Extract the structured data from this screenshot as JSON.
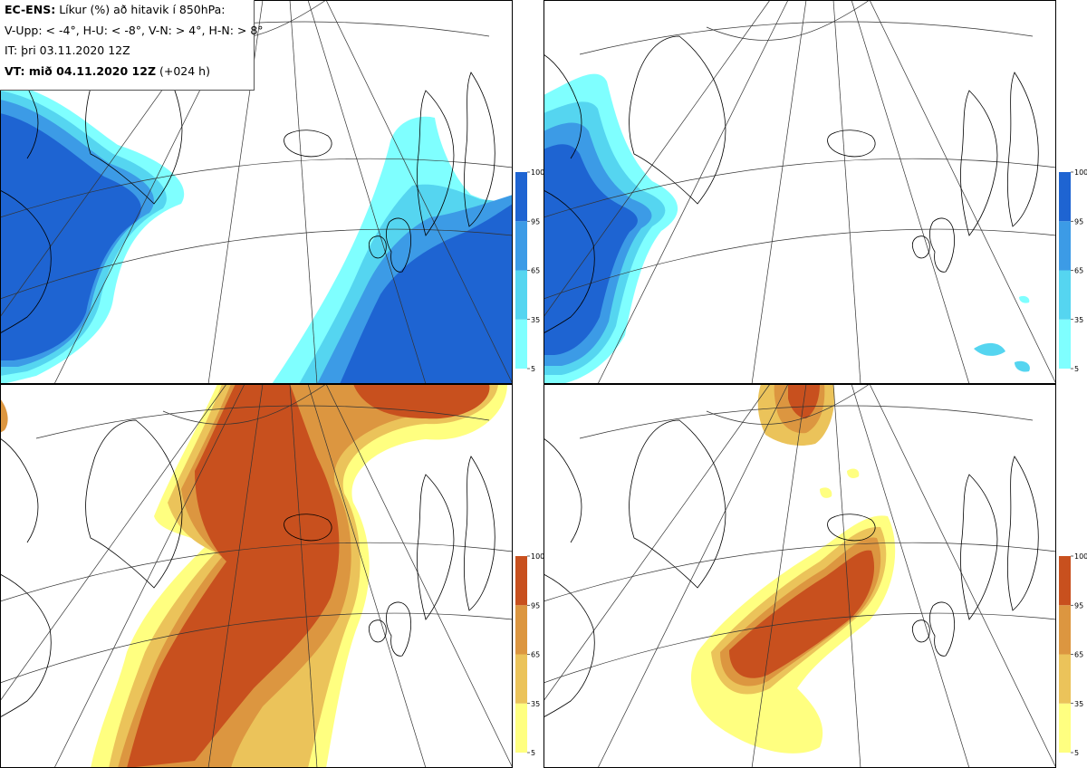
{
  "header": {
    "model": "EC-ENS:",
    "title": "Líkur (%) að hitavik í 850hPa:",
    "thresholds": "V-Upp: < -4°, H-U: < -8°, V-N: > 4°, H-N: > 8°",
    "init_time": "IT: þri 03.11.2020 12Z",
    "valid_label": "VT: mið 04.11.2020 12Z",
    "lead_time": "(+024 h)"
  },
  "colorbar_ticks": [
    "100",
    "95",
    "65",
    "35",
    "5"
  ],
  "panels": [
    {
      "id": "V-Upp",
      "palette": "cold"
    },
    {
      "id": "H-U",
      "palette": "cold"
    },
    {
      "id": "V-N",
      "palette": "warm"
    },
    {
      "id": "H-N",
      "palette": "warm"
    }
  ],
  "colors": {
    "cold": [
      "#7fffff",
      "#55d5f0",
      "#3c9be6",
      "#1e64d2"
    ],
    "warm": [
      "#ffff80",
      "#ebc35a",
      "#dc9640",
      "#c8501e"
    ],
    "land_outline": "#000000",
    "grid": "#333333"
  }
}
